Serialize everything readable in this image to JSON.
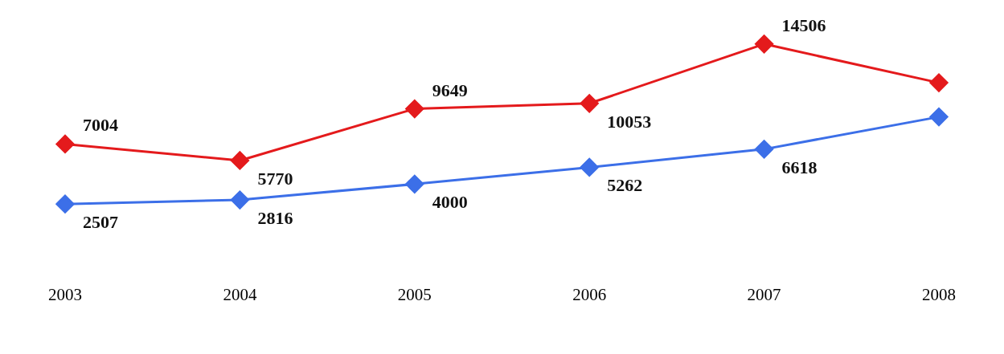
{
  "chart_data": {
    "type": "line",
    "categories": [
      "2003",
      "2004",
      "2005",
      "2006",
      "2007",
      "2008"
    ],
    "series": [
      {
        "color": "#e41a1c",
        "values": [
          7004,
          5770,
          9649,
          10053,
          14506,
          11600
        ],
        "value_labels": [
          "7004",
          "5770",
          "9649",
          "10053",
          "14506",
          null
        ]
      },
      {
        "color": "#3c6fe8",
        "values": [
          2507,
          2816,
          4000,
          5262,
          6618,
          9040
        ],
        "value_labels": [
          "2507",
          "2816",
          "4000",
          "5262",
          "6618",
          null
        ]
      }
    ],
    "marker": "diamond",
    "line_style": "solid",
    "grid": false,
    "legend": false
  }
}
